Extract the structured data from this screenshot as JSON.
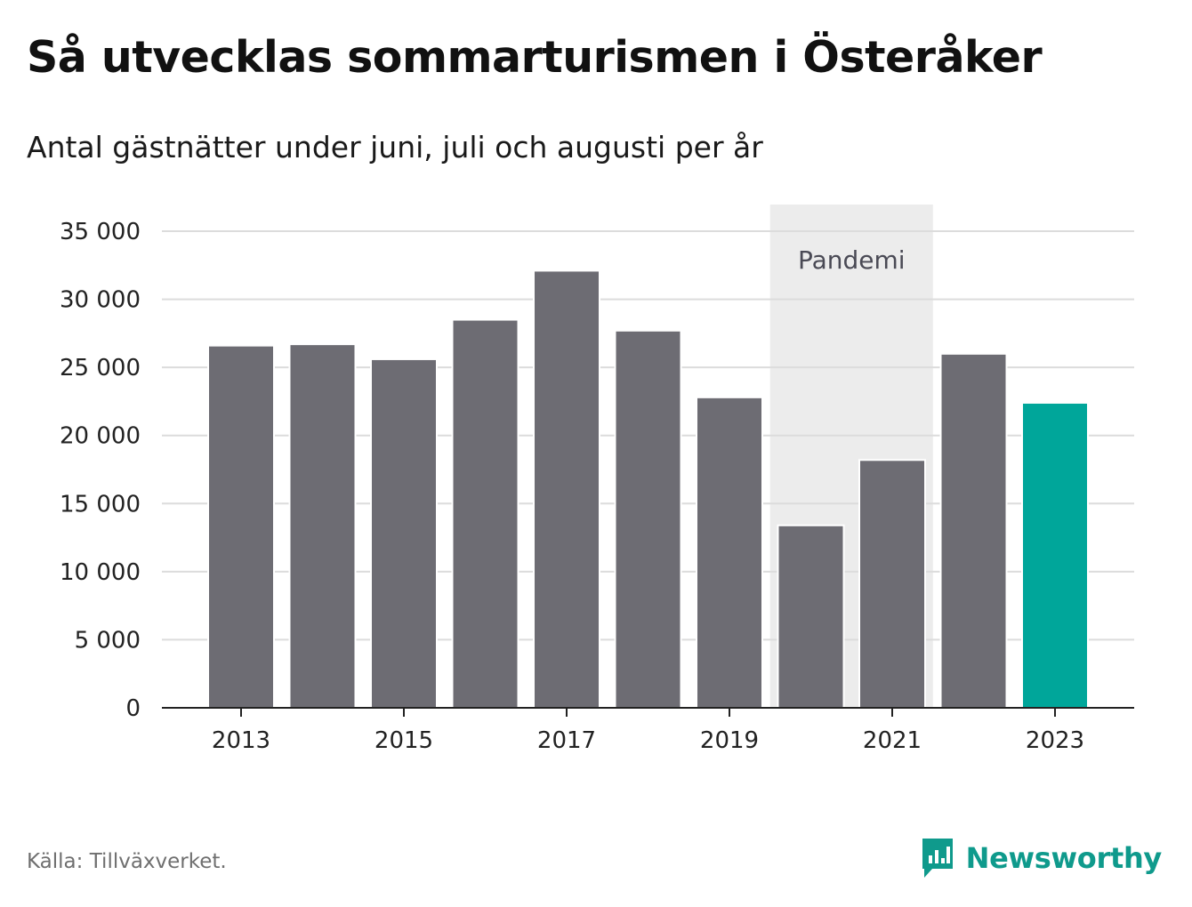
{
  "title": "Så utvecklas sommarturismen i Österåker",
  "subtitle": "Antal gästnätter under juni, juli och augusti per år",
  "source": "Källa: Tillväxverket.",
  "brand": {
    "name": "Newsworthy",
    "icon": "newsworthy-logo-icon",
    "color": "#0f9a8c"
  },
  "chart_data": {
    "type": "bar",
    "categories": [
      "2013",
      "2014",
      "2015",
      "2016",
      "2017",
      "2018",
      "2019",
      "2020",
      "2021",
      "2022",
      "2023"
    ],
    "values": [
      26600,
      26700,
      25600,
      28500,
      32100,
      27700,
      22800,
      13400,
      18200,
      26000,
      22400
    ],
    "x_tick_labels": [
      "2013",
      "2015",
      "2017",
      "2019",
      "2021",
      "2023"
    ],
    "y_ticks": [
      0,
      5000,
      10000,
      15000,
      20000,
      25000,
      30000,
      35000
    ],
    "y_tick_labels": [
      "0",
      "5 000",
      "10 000",
      "15 000",
      "20 000",
      "25 000",
      "30 000",
      "35 000"
    ],
    "ylim": [
      0,
      35000
    ],
    "grid": true,
    "bar_color": "#6d6c73",
    "highlight": {
      "category": "2023",
      "color": "#00a69a"
    },
    "annotation": {
      "label": "Pandemi",
      "from": "2020",
      "to": "2021",
      "color": "#ececec"
    }
  }
}
